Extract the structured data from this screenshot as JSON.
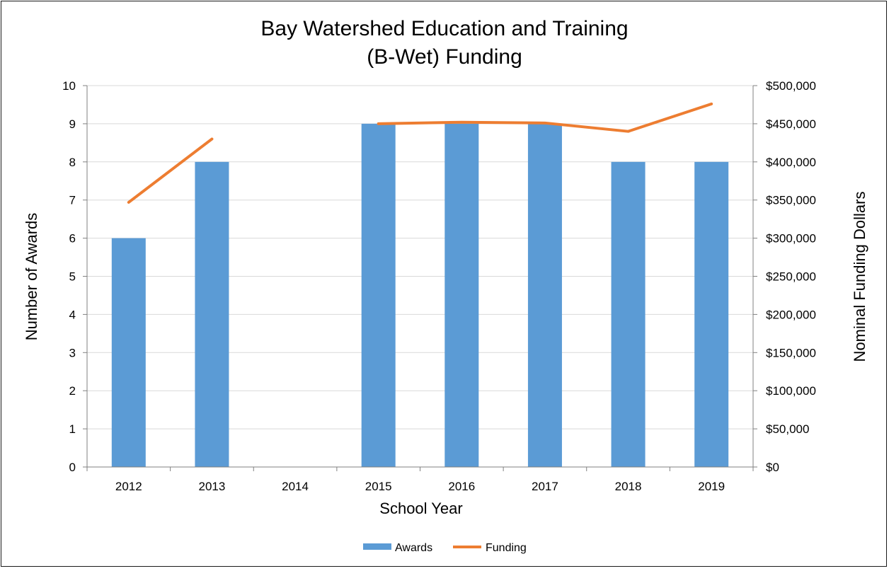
{
  "chart_data": {
    "type": "bar",
    "title_lines": [
      "Bay Watershed Education and Training",
      "(B-Wet) Funding"
    ],
    "xlabel": "School Year",
    "ylabel": "Number of Awards",
    "y2label": "Nominal Funding Dollars",
    "categories": [
      "2012",
      "2013",
      "2014",
      "2015",
      "2016",
      "2017",
      "2018",
      "2019"
    ],
    "ylim": [
      0,
      10
    ],
    "y2lim": [
      0,
      500000
    ],
    "yticks": [
      "0",
      "1",
      "2",
      "3",
      "4",
      "5",
      "6",
      "7",
      "8",
      "9",
      "10"
    ],
    "y2ticks": [
      "$0",
      "$50,000",
      "$100,000",
      "$150,000",
      "$200,000",
      "$250,000",
      "$300,000",
      "$350,000",
      "$400,000",
      "$450,000",
      "$500,000"
    ],
    "grid": true,
    "legend_position": "bottom",
    "series": [
      {
        "name": "Awards",
        "kind": "bar",
        "axis": "left",
        "color": "#5B9BD5",
        "values": [
          6,
          8,
          null,
          9,
          9,
          9,
          8,
          8
        ]
      },
      {
        "name": "Funding",
        "kind": "line",
        "axis": "right",
        "color": "#ED7D31",
        "values": [
          347000,
          430000,
          null,
          450000,
          452000,
          451000,
          440000,
          476000
        ]
      }
    ]
  }
}
